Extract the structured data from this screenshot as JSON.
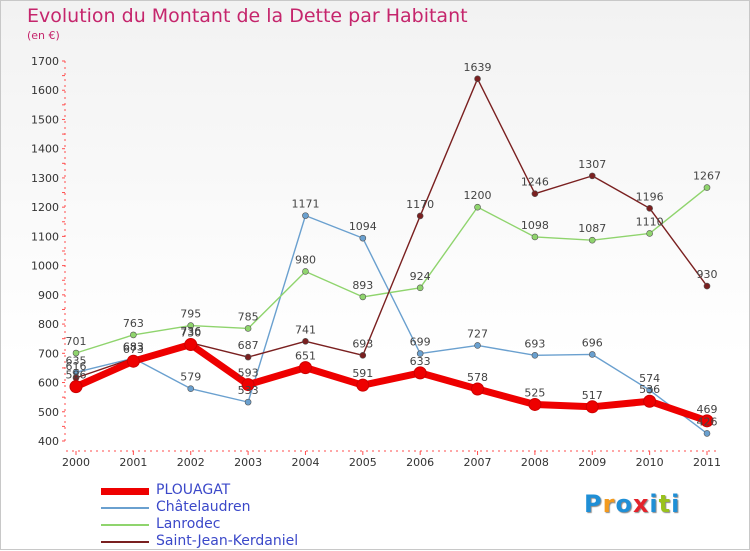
{
  "title": "Evolution du Montant de la Dette par Habitant",
  "subtitle": "(en €)",
  "logo": {
    "text": "Proxiti",
    "letter_colors": [
      "#1f8fd6",
      "#f39a1d",
      "#1f8fd6",
      "#e4232b",
      "#1f8fd6",
      "#9ac21e",
      "#1f8fd6"
    ]
  },
  "chart_data": {
    "type": "line",
    "x": [
      "2000",
      "2001",
      "2002",
      "2003",
      "2004",
      "2005",
      "2006",
      "2007",
      "2008",
      "2009",
      "2010",
      "2011"
    ],
    "ylim": [
      400,
      1700
    ],
    "yticks": [
      "400",
      "500",
      "600",
      "700",
      "800",
      "900",
      "1000",
      "1100",
      "1200",
      "1300",
      "1400",
      "1500",
      "1600",
      "1700"
    ],
    "grid": false,
    "legend_placement": "bottom-left",
    "series": [
      {
        "name": "PLOUAGAT",
        "color": "#ee0000",
        "values": [
          586,
          673,
          730,
          593,
          651,
          591,
          633,
          578,
          525,
          517,
          536,
          469
        ],
        "labels": [
          "586",
          "673",
          "730",
          "593",
          "651",
          "591",
          "633",
          "578",
          "525",
          "517",
          "536",
          "469"
        ]
      },
      {
        "name": "Châtelaudren",
        "color": "#6aa0cf",
        "values": [
          635,
          683,
          579,
          533,
          1171,
          1094,
          699,
          727,
          693,
          696,
          574,
          426
        ],
        "labels": [
          "635",
          "683",
          "579",
          "533",
          "1171",
          "1094",
          "699",
          "727",
          "693",
          "696",
          "574",
          "426"
        ]
      },
      {
        "name": "Lanrodec",
        "color": "#8fd46d",
        "values": [
          701,
          763,
          795,
          785,
          980,
          893,
          924,
          1200,
          1098,
          1087,
          1110,
          1267
        ],
        "labels": [
          "701",
          "763",
          "795",
          "785",
          "980",
          "893",
          "924",
          "1200",
          "1098",
          "1087",
          "1110",
          "1267"
        ]
      },
      {
        "name": "Saint-Jean-Kerdaniel",
        "color": "#7a2020",
        "values": [
          616,
          683,
          736,
          687,
          741,
          693,
          1170,
          1639,
          1246,
          1307,
          1196,
          930
        ],
        "labels": [
          "616",
          "683",
          "736",
          "687",
          "741",
          "693",
          "1170",
          "1639",
          "1246",
          "1307",
          "1196",
          "930"
        ]
      }
    ]
  }
}
